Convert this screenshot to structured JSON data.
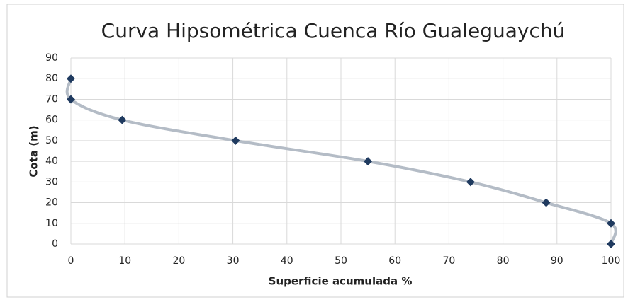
{
  "chart_data": {
    "type": "scatter",
    "title": "Curva Hipsométrica Cuenca Río Gualeguaychú",
    "x_label": "Superficie acumulada %",
    "y_label": "Cota (m)",
    "x": [
      0,
      0,
      9.5,
      30.5,
      55,
      74,
      88,
      100,
      100
    ],
    "values": [
      80,
      70,
      60,
      50,
      40,
      30,
      20,
      10,
      0
    ],
    "marker_color": "#1f3a5f",
    "line_color": "#b4bcc6",
    "smooth": true,
    "xlim": [
      0,
      100
    ],
    "xticks": [
      0,
      10,
      20,
      30,
      40,
      50,
      60,
      70,
      80,
      90,
      100
    ],
    "ylim": [
      0,
      90
    ],
    "yticks": [
      0,
      10,
      20,
      30,
      40,
      50,
      60,
      70,
      80,
      90
    ],
    "grid": true
  }
}
